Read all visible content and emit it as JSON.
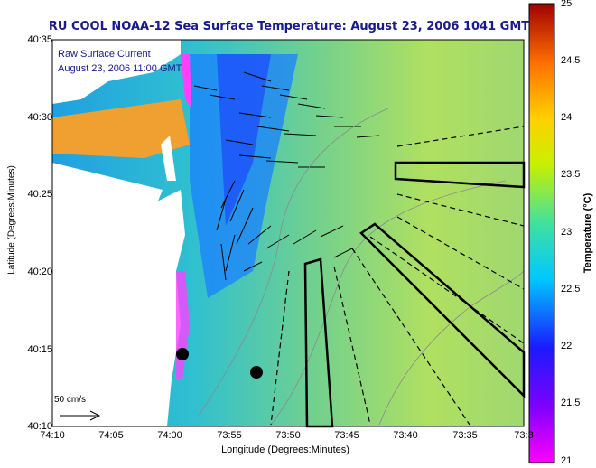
{
  "title": "RU COOL  NOAA-12  Sea Surface Temperature:  August 23, 2006 1041 GMT",
  "legend": {
    "line1": "Raw Surface Current",
    "line2": "August 23, 2006 11:00 GMT"
  },
  "scale": {
    "label": "50 cm/s"
  },
  "axes": {
    "x_label": "Longitude (Degrees:Minutes)",
    "y_label": "Latitude (Degrees:Minutes)",
    "x_ticks": [
      "74:10",
      "74:05",
      "74:00",
      "73:55",
      "73:50",
      "73:45",
      "73:40",
      "73:35",
      "73:3"
    ],
    "y_ticks": [
      "40:35",
      "40:30",
      "40:25",
      "40:20",
      "40:15",
      "40:10"
    ]
  },
  "colorbar": {
    "label": "Temperature (°C)",
    "ticks": [
      "25",
      "24.5",
      "24",
      "23.5",
      "23",
      "22.5",
      "22",
      "21.5",
      "21"
    ],
    "colors": [
      "#ff00ff",
      "#1a1aff",
      "#00c8ff",
      "#40e0a0",
      "#ffff00",
      "#ff8000",
      "#c00000"
    ]
  }
}
